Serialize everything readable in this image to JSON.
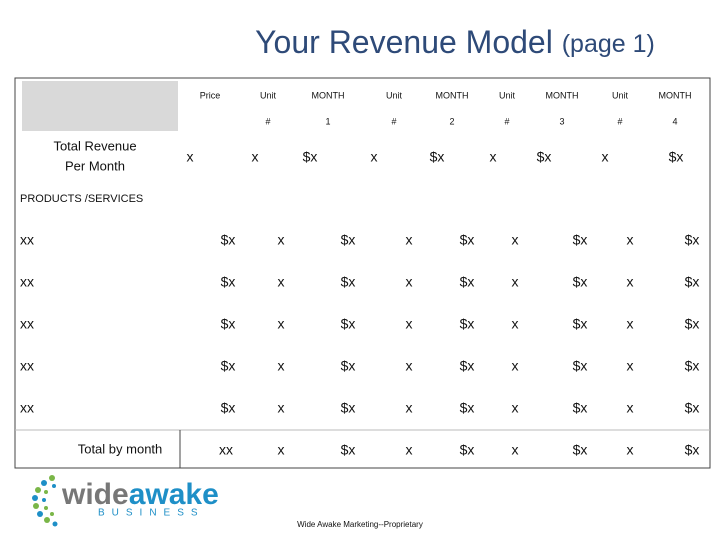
{
  "title": "Your Revenue Model",
  "title_suffix": "(page 1)",
  "table": {
    "header_row_1": [
      "Price",
      "Unit",
      "MONTH",
      "Unit",
      "MONTH",
      "Unit",
      "MONTH",
      "Unit",
      "MONTH"
    ],
    "header_row_2": [
      "#",
      1,
      "#",
      2,
      "#",
      3,
      "#",
      4
    ],
    "summary_label": [
      "Total Revenue",
      "Per Month"
    ],
    "summary_row": [
      "x",
      "x",
      "$x",
      "x",
      "$x",
      "x",
      "$x",
      "x",
      "$x"
    ],
    "section_label": "PRODUCTS /SERVICES",
    "rows": [
      [
        "xx",
        "$x",
        "x",
        "$x",
        "x",
        "$x",
        "x",
        "$x",
        "x",
        "$x"
      ],
      [
        "xx",
        "$x",
        "x",
        "$x",
        "x",
        "$x",
        "x",
        "$x",
        "x",
        "$x"
      ],
      [
        "xx",
        "$x",
        "x",
        "$x",
        "x",
        "$x",
        "x",
        "$x",
        "x",
        "$x"
      ],
      [
        "xx",
        "$x",
        "x",
        "$x",
        "x",
        "$x",
        "x",
        "$x",
        "x",
        "$x"
      ],
      [
        "xx",
        "$x",
        "x",
        "$x",
        "x",
        "$x",
        "x",
        "$x",
        "x",
        "$x"
      ]
    ],
    "total_row": [
      "Total by month",
      "xx",
      "x",
      "$x",
      "x",
      "$x",
      "x",
      "$x",
      "x",
      "$x"
    ]
  },
  "logo": {
    "word_1": "wide",
    "word_2": "awake",
    "tagline": "BUSINESS"
  },
  "footer": "Wide Awake Marketing--Proprietary"
}
